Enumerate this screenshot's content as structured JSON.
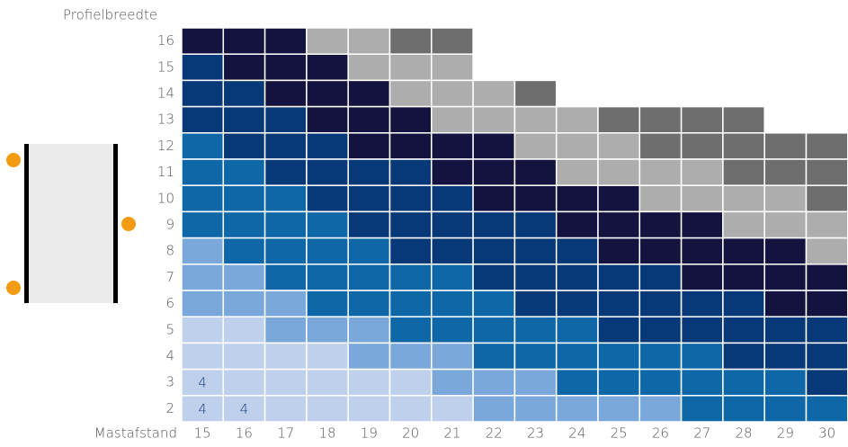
{
  "chart_data": {
    "type": "heatmap",
    "y_label": "Profielbreedte",
    "x_label": "Mastafstand",
    "x": [
      "15",
      "16",
      "17",
      "18",
      "19",
      "20",
      "21",
      "22",
      "23",
      "24",
      "25",
      "26",
      "27",
      "28",
      "29",
      "30"
    ],
    "y": [
      "16",
      "15",
      "14",
      "13",
      "12",
      "11",
      "10",
      "9",
      "8",
      "7",
      "6",
      "5",
      "4",
      "3",
      "2"
    ],
    "cells": [
      [
        "#14123f",
        "#14123f",
        "#14123f",
        "#adadad",
        "#adadad",
        "#6e6e6e",
        "#6e6e6e",
        null,
        null,
        null,
        null,
        null,
        null,
        null,
        null,
        null
      ],
      [
        "#073878",
        "#14123f",
        "#14123f",
        "#14123f",
        "#adadad",
        "#adadad",
        "#adadad",
        null,
        null,
        null,
        null,
        null,
        null,
        null,
        null,
        null
      ],
      [
        "#073878",
        "#073878",
        "#14123f",
        "#14123f",
        "#14123f",
        "#adadad",
        "#adadad",
        "#adadad",
        "#6e6e6e",
        null,
        null,
        null,
        null,
        null,
        null,
        null
      ],
      [
        "#073878",
        "#073878",
        "#073878",
        "#14123f",
        "#14123f",
        "#14123f",
        "#adadad",
        "#adadad",
        "#adadad",
        "#adadad",
        "#6e6e6e",
        "#6e6e6e",
        "#6e6e6e",
        "#6e6e6e",
        null,
        null
      ],
      [
        "#0e68a8",
        "#073878",
        "#073878",
        "#073878",
        "#14123f",
        "#14123f",
        "#14123f",
        "#14123f",
        "#adadad",
        "#adadad",
        "#adadad",
        "#6e6e6e",
        "#6e6e6e",
        "#6e6e6e",
        "#6e6e6e",
        "#6e6e6e"
      ],
      [
        "#0e68a8",
        "#0e68a8",
        "#073878",
        "#073878",
        "#073878",
        "#073878",
        "#14123f",
        "#14123f",
        "#14123f",
        "#adadad",
        "#adadad",
        "#adadad",
        "#adadad",
        "#6e6e6e",
        "#6e6e6e",
        "#6e6e6e"
      ],
      [
        "#0e68a8",
        "#0e68a8",
        "#0e68a8",
        "#073878",
        "#073878",
        "#073878",
        "#073878",
        "#14123f",
        "#14123f",
        "#14123f",
        "#14123f",
        "#adadad",
        "#adadad",
        "#adadad",
        "#adadad",
        "#6e6e6e"
      ],
      [
        "#0e68a8",
        "#0e68a8",
        "#0e68a8",
        "#0e68a8",
        "#073878",
        "#073878",
        "#073878",
        "#073878",
        "#073878",
        "#14123f",
        "#14123f",
        "#14123f",
        "#14123f",
        "#adadad",
        "#adadad",
        "#adadad"
      ],
      [
        "#7aa8da",
        "#0e68a8",
        "#0e68a8",
        "#0e68a8",
        "#0e68a8",
        "#073878",
        "#073878",
        "#073878",
        "#073878",
        "#073878",
        "#14123f",
        "#14123f",
        "#14123f",
        "#14123f",
        "#14123f",
        "#adadad"
      ],
      [
        "#7aa8da",
        "#7aa8da",
        "#0e68a8",
        "#0e68a8",
        "#0e68a8",
        "#0e68a8",
        "#0e68a8",
        "#073878",
        "#073878",
        "#073878",
        "#073878",
        "#073878",
        "#14123f",
        "#14123f",
        "#14123f",
        "#14123f"
      ],
      [
        "#7aa8da",
        "#7aa8da",
        "#7aa8da",
        "#0e68a8",
        "#0e68a8",
        "#0e68a8",
        "#0e68a8",
        "#0e68a8",
        "#073878",
        "#073878",
        "#073878",
        "#073878",
        "#073878",
        "#073878",
        "#14123f",
        "#14123f"
      ],
      [
        "#bfd0ec",
        "#bfd0ec",
        "#7aa8da",
        "#7aa8da",
        "#7aa8da",
        "#0e68a8",
        "#0e68a8",
        "#0e68a8",
        "#0e68a8",
        "#0e68a8",
        "#073878",
        "#073878",
        "#073878",
        "#073878",
        "#073878",
        "#073878"
      ],
      [
        "#bfd0ec",
        "#bfd0ec",
        "#bfd0ec",
        "#bfd0ec",
        "#7aa8da",
        "#7aa8da",
        "#7aa8da",
        "#0e68a8",
        "#0e68a8",
        "#0e68a8",
        "#0e68a8",
        "#0e68a8",
        "#0e68a8",
        "#073878",
        "#073878",
        "#073878"
      ],
      [
        "#bfd0ec",
        "#bfd0ec",
        "#bfd0ec",
        "#bfd0ec",
        "#bfd0ec",
        "#bfd0ec",
        "#7aa8da",
        "#7aa8da",
        "#7aa8da",
        "#0e68a8",
        "#0e68a8",
        "#0e68a8",
        "#0e68a8",
        "#0e68a8",
        "#0e68a8",
        "#073878"
      ],
      [
        "#bfd0ec",
        "#bfd0ec",
        "#bfd0ec",
        "#bfd0ec",
        "#bfd0ec",
        "#bfd0ec",
        "#bfd0ec",
        "#7aa8da",
        "#7aa8da",
        "#7aa8da",
        "#7aa8da",
        "#7aa8da",
        "#0e68a8",
        "#0e68a8",
        "#0e68a8",
        "#0e68a8"
      ]
    ],
    "annotations": [
      {
        "x": "15",
        "y": "3",
        "text": "4"
      },
      {
        "x": "15",
        "y": "2",
        "text": "4"
      },
      {
        "x": "16",
        "y": "2",
        "text": "4"
      }
    ]
  }
}
